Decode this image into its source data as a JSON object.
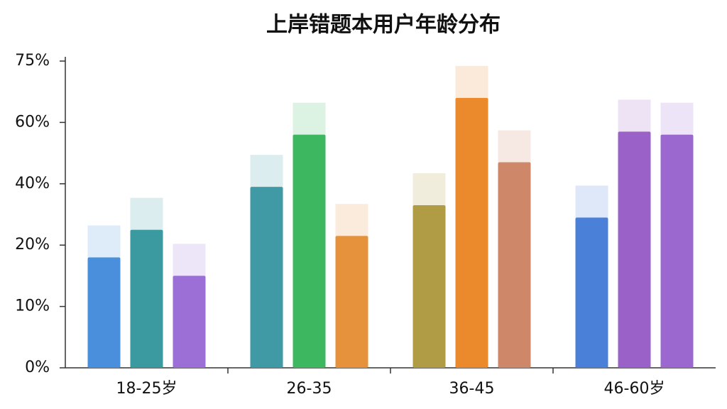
{
  "chart_data": {
    "type": "bar",
    "title": "上岸错题本用户年龄分布",
    "categories": [
      "18-25岁",
      "26-35",
      "36-45",
      "46-60岁"
    ],
    "series": [
      {
        "colors": [
          "#4a8fdc",
          "#3f9aa6",
          "#b09c45",
          "#4b80d8"
        ],
        "values": [
          18,
          39,
          33,
          29
        ]
      },
      {
        "colors": [
          "#3a9aa0",
          "#3db860",
          "#ea8a2c",
          "#9a62c8"
        ],
        "values": [
          25,
          56,
          66,
          57
        ]
      },
      {
        "colors": [
          "#9b6fd6",
          "#e6913c",
          "#cf876a",
          "#9b68d0"
        ],
        "values": [
          15,
          23,
          47,
          56
        ]
      }
    ],
    "ylim": [
      0,
      75
    ],
    "yticks": [
      {
        "value": 0,
        "label": "0%"
      },
      {
        "value": 10,
        "label": "10%"
      },
      {
        "value": 20,
        "label": "20%"
      },
      {
        "value": 40,
        "label": "40%"
      },
      {
        "value": 60,
        "label": "60%"
      },
      {
        "value": 75,
        "label": "75%"
      }
    ]
  }
}
